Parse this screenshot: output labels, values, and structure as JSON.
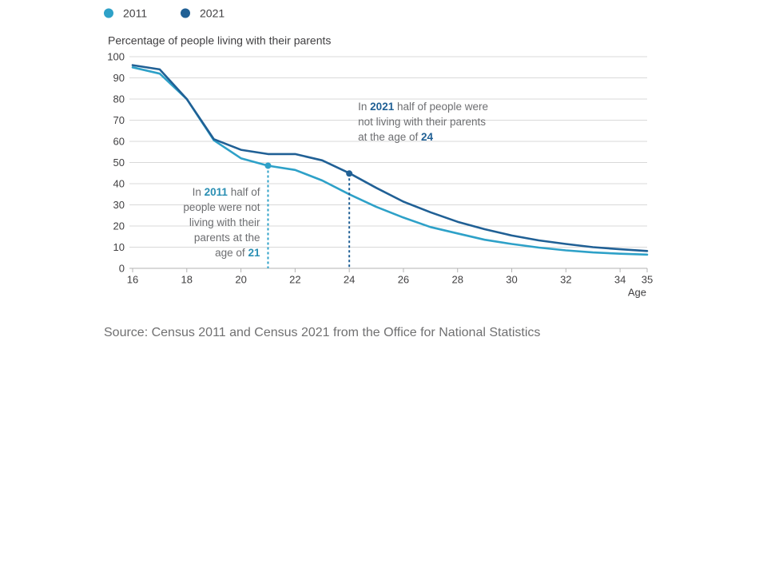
{
  "colors": {
    "s2011": "#2ea1c8",
    "s2021": "#206095",
    "grid": "#d9d9d9"
  },
  "legend": [
    {
      "label": "2011",
      "color": "#2ea1c8"
    },
    {
      "label": "2021",
      "color": "#206095"
    }
  ],
  "source": "Source: Census 2011 and Census 2021 from the Office for National Statistics",
  "chart_data": {
    "type": "line",
    "ylabel": "Percentage of people living with their parents",
    "xlabel": "Age",
    "xlim": [
      16,
      35
    ],
    "ylim": [
      0,
      100
    ],
    "xticks": [
      16,
      18,
      20,
      22,
      24,
      26,
      28,
      30,
      32,
      34,
      35
    ],
    "yticks": [
      0,
      10,
      20,
      30,
      40,
      50,
      60,
      70,
      80,
      90,
      100
    ],
    "grid": true,
    "legend_position": "top-left",
    "x": [
      16,
      17,
      18,
      19,
      20,
      21,
      22,
      23,
      24,
      25,
      26,
      27,
      28,
      29,
      30,
      31,
      32,
      33,
      34,
      35
    ],
    "series": [
      {
        "name": "2011",
        "color": "#2ea1c8",
        "values": [
          95,
          92,
          80,
          60.5,
          52,
          48.5,
          46.5,
          41.5,
          35,
          29,
          24,
          19.5,
          16.5,
          13.5,
          11.5,
          9.8,
          8.5,
          7.5,
          6.9,
          6.5
        ]
      },
      {
        "name": "2021",
        "color": "#206095",
        "values": [
          96,
          94,
          80,
          61,
          56,
          54,
          54,
          51,
          45,
          38,
          31.5,
          26.5,
          22,
          18.5,
          15.5,
          13.2,
          11.5,
          10,
          9,
          8.2
        ]
      }
    ],
    "annotations": [
      {
        "series": "2011",
        "x": 21,
        "y": 48.5,
        "parts": [
          [
            "In ",
            ""
          ],
          [
            "2011",
            "hl2011"
          ],
          [
            " half of",
            ""
          ]
        ],
        "lines": [
          "people were not",
          "living with their",
          "parents at the"
        ],
        "last": [
          [
            "age of ",
            ""
          ],
          [
            "21",
            "hl2011"
          ]
        ]
      },
      {
        "series": "2021",
        "x": 24,
        "y": 44.8,
        "parts": [
          [
            "In ",
            ""
          ],
          [
            "2021",
            "hl2021"
          ],
          [
            " half of people were",
            ""
          ]
        ],
        "lines": [
          "not living with their parents"
        ],
        "last": [
          [
            "at the age of ",
            ""
          ],
          [
            "24",
            "hl2021"
          ]
        ]
      }
    ]
  }
}
